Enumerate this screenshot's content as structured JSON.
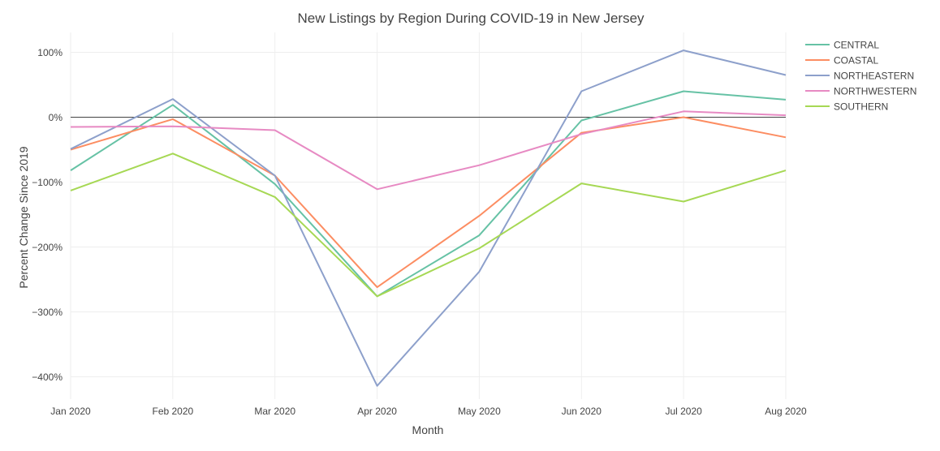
{
  "chart_data": {
    "type": "line",
    "title": "New Listings by Region During COVID-19 in New Jersey",
    "xlabel": "Month",
    "ylabel": "Percent Change Since 2019",
    "categories": [
      "Jan 2020",
      "Feb 2020",
      "Mar 2020",
      "Apr 2020",
      "May 2020",
      "Jun 2020",
      "Jul 2020",
      "Aug 2020"
    ],
    "yticks": [
      100,
      0,
      -100,
      -200,
      -300,
      -400
    ],
    "ytick_labels": [
      "100%",
      "0%",
      "−100%",
      "−200%",
      "−300%",
      "−400%"
    ],
    "ylim": [
      -440,
      130
    ],
    "grid": true,
    "legend_position": "top-right",
    "series": [
      {
        "name": "CENTRAL",
        "color": "#66c2a5",
        "values": [
          -82,
          19,
          -103,
          -276,
          -182,
          -5,
          40,
          27
        ]
      },
      {
        "name": "COASTAL",
        "color": "#fc8d62",
        "values": [
          -50,
          -3,
          -90,
          -262,
          -152,
          -24,
          0,
          -31
        ]
      },
      {
        "name": "NORTHEASTERN",
        "color": "#8da0cb",
        "values": [
          -49,
          28,
          -90,
          -414,
          -238,
          40,
          103,
          65
        ]
      },
      {
        "name": "NORTHWESTERN",
        "color": "#e78ac3",
        "values": [
          -15,
          -14,
          -20,
          -111,
          -74,
          -26,
          9,
          3
        ]
      },
      {
        "name": "SOUTHERN",
        "color": "#a6d854",
        "values": [
          -113,
          -56,
          -123,
          -276,
          -202,
          -102,
          -130,
          -82
        ]
      }
    ]
  }
}
